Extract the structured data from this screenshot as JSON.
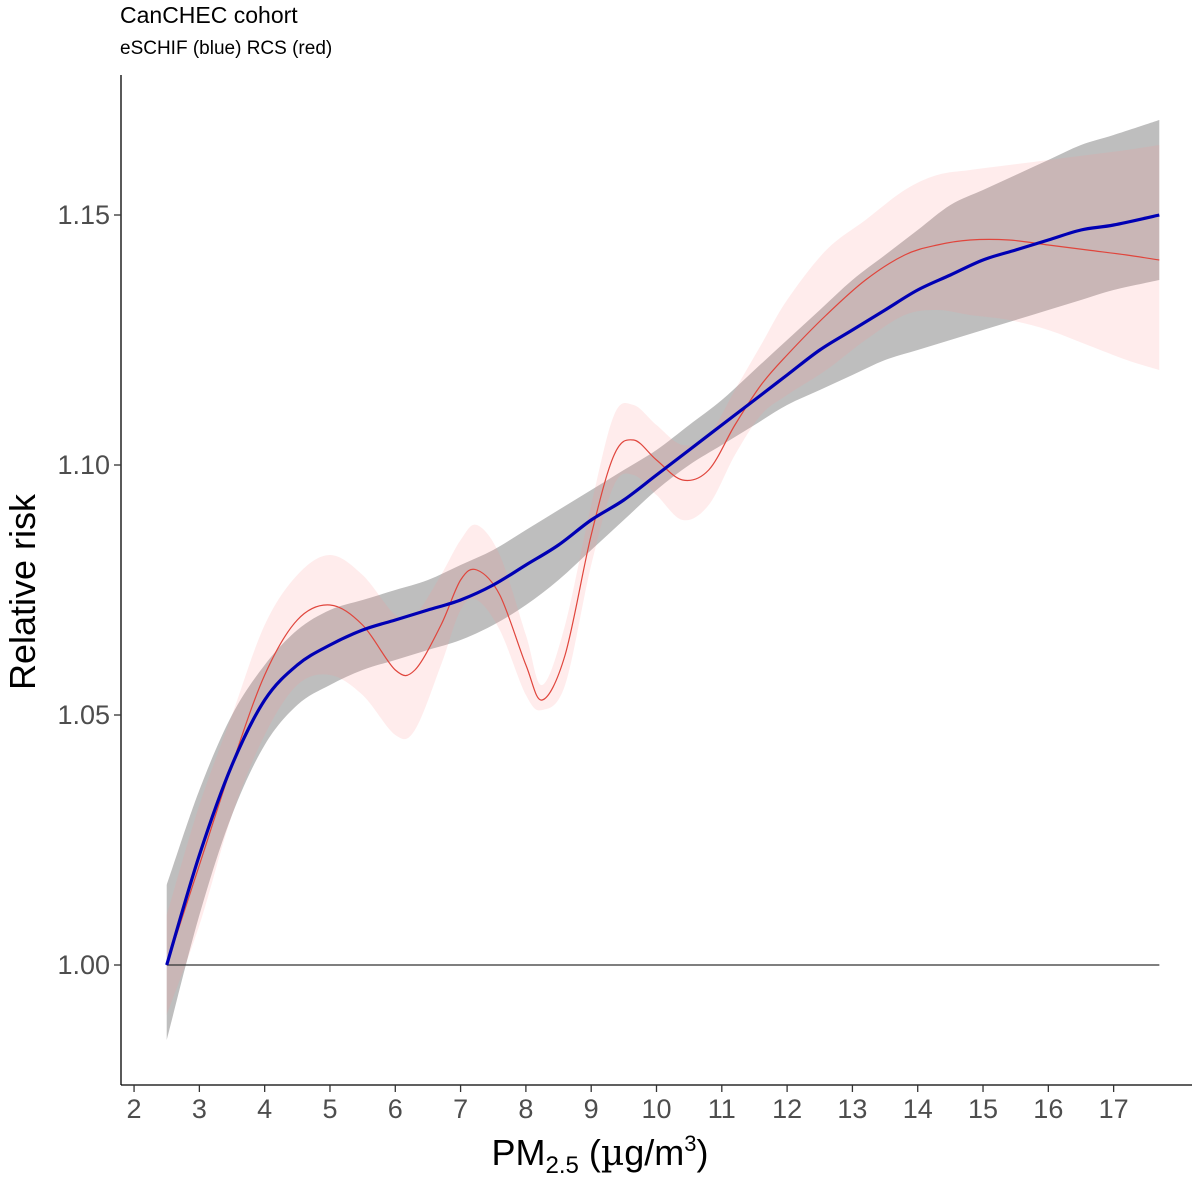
{
  "chart_data": {
    "type": "line",
    "title": "CanCHEC cohort",
    "subtitle": "eSCHIF (blue) RCS (red)",
    "xlabel": {
      "main": "PM",
      "sub": "2.5",
      "units_open": " (",
      "mu": "µ",
      "units_mid": "g/m",
      "sup": "3",
      "units_close": ")"
    },
    "ylabel": "Relative risk",
    "xlim": [
      1.8,
      18.2
    ],
    "ylim": [
      0.976,
      1.178
    ],
    "x_ticks": [
      2,
      3,
      4,
      5,
      6,
      7,
      8,
      9,
      10,
      11,
      12,
      13,
      14,
      15,
      16,
      17
    ],
    "y_ticks": [
      1.0,
      1.05,
      1.1,
      1.15
    ],
    "y_tick_labels": [
      "1.00",
      "1.05",
      "1.10",
      "1.15"
    ],
    "reference_line": {
      "y": 1.0,
      "x_range": [
        2.5,
        17.7
      ],
      "color": "#333333"
    },
    "series": [
      {
        "name": "eSCHIF",
        "color": "#0000b4",
        "band_color": "#bebebe",
        "x": [
          2.5,
          3.0,
          3.5,
          4.0,
          4.5,
          5.0,
          5.5,
          6.0,
          6.5,
          7.0,
          7.5,
          8.0,
          8.5,
          9.0,
          9.5,
          10.0,
          10.5,
          11.0,
          11.5,
          12.0,
          12.5,
          13.0,
          13.5,
          14.0,
          14.5,
          15.0,
          15.5,
          16.0,
          16.5,
          17.0,
          17.7
        ],
        "y": [
          1.0,
          1.022,
          1.04,
          1.053,
          1.06,
          1.064,
          1.067,
          1.069,
          1.071,
          1.073,
          1.076,
          1.08,
          1.084,
          1.089,
          1.093,
          1.098,
          1.103,
          1.108,
          1.113,
          1.118,
          1.123,
          1.127,
          1.131,
          1.135,
          1.138,
          1.141,
          1.143,
          1.145,
          1.147,
          1.148,
          1.15
        ],
        "lower": [
          0.985,
          1.01,
          1.03,
          1.044,
          1.052,
          1.056,
          1.059,
          1.061,
          1.063,
          1.065,
          1.068,
          1.072,
          1.077,
          1.083,
          1.089,
          1.095,
          1.1,
          1.104,
          1.108,
          1.112,
          1.115,
          1.118,
          1.121,
          1.123,
          1.125,
          1.127,
          1.129,
          1.131,
          1.133,
          1.135,
          1.137
        ],
        "upper": [
          1.016,
          1.035,
          1.05,
          1.06,
          1.067,
          1.071,
          1.073,
          1.075,
          1.077,
          1.08,
          1.083,
          1.087,
          1.091,
          1.095,
          1.099,
          1.103,
          1.108,
          1.113,
          1.119,
          1.125,
          1.131,
          1.137,
          1.142,
          1.147,
          1.152,
          1.155,
          1.158,
          1.161,
          1.164,
          1.166,
          1.169
        ]
      },
      {
        "name": "RCS",
        "color": "#e0453c",
        "band_color": "rgba(255,180,180,0.25)",
        "x": [
          2.5,
          3.0,
          3.5,
          4.0,
          4.5,
          5.0,
          5.5,
          6.0,
          6.3,
          6.7,
          7.0,
          7.25,
          7.6,
          8.0,
          8.25,
          8.6,
          9.0,
          9.35,
          9.65,
          10.0,
          10.4,
          10.8,
          11.2,
          11.6,
          12.0,
          12.6,
          13.2,
          13.8,
          14.3,
          14.8,
          15.4,
          16.0,
          16.6,
          17.2,
          17.7
        ],
        "y": [
          1.0,
          1.02,
          1.04,
          1.058,
          1.069,
          1.072,
          1.068,
          1.059,
          1.059,
          1.068,
          1.077,
          1.079,
          1.074,
          1.06,
          1.053,
          1.062,
          1.086,
          1.102,
          1.105,
          1.101,
          1.097,
          1.099,
          1.108,
          1.116,
          1.122,
          1.13,
          1.137,
          1.142,
          1.144,
          1.145,
          1.145,
          1.144,
          1.143,
          1.142,
          1.141
        ],
        "lower": [
          0.99,
          1.008,
          1.03,
          1.046,
          1.056,
          1.058,
          1.054,
          1.046,
          1.047,
          1.06,
          1.071,
          1.073,
          1.067,
          1.054,
          1.051,
          1.056,
          1.08,
          1.096,
          1.098,
          1.094,
          1.089,
          1.092,
          1.102,
          1.11,
          1.114,
          1.119,
          1.125,
          1.13,
          1.131,
          1.13,
          1.129,
          1.127,
          1.124,
          1.121,
          1.119
        ],
        "upper": [
          1.01,
          1.032,
          1.05,
          1.068,
          1.078,
          1.082,
          1.078,
          1.07,
          1.07,
          1.078,
          1.085,
          1.088,
          1.082,
          1.066,
          1.056,
          1.068,
          1.092,
          1.11,
          1.112,
          1.108,
          1.104,
          1.106,
          1.115,
          1.124,
          1.133,
          1.143,
          1.149,
          1.155,
          1.158,
          1.159,
          1.16,
          1.161,
          1.162,
          1.163,
          1.164
        ]
      }
    ]
  }
}
